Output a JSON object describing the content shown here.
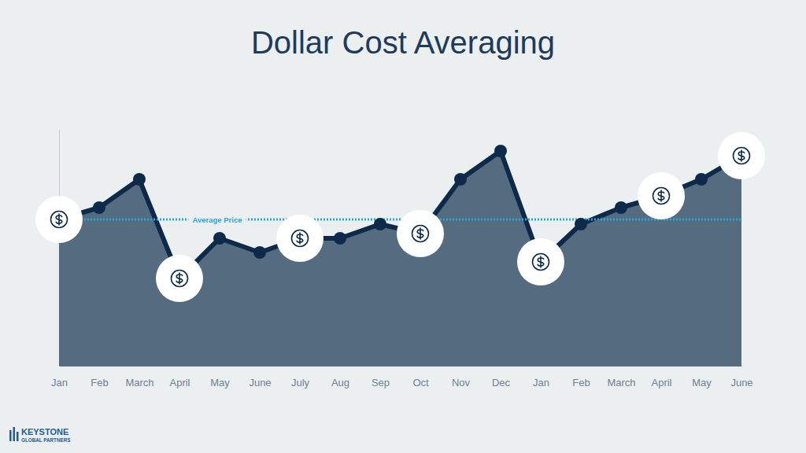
{
  "chart_data": {
    "type": "area",
    "title": "Dollar Cost Averaging",
    "categories": [
      "Jan",
      "Feb",
      "March",
      "April",
      "May",
      "June",
      "July",
      "Aug",
      "Sep",
      "Oct",
      "Nov",
      "Dec",
      "Jan",
      "Feb",
      "March",
      "April",
      "May",
      "June"
    ],
    "values": [
      62,
      67,
      79,
      37,
      54,
      48,
      54,
      54,
      60,
      56,
      79,
      91,
      44,
      60,
      67,
      72,
      79,
      89
    ],
    "color": "#0d2a4a",
    "marker": "circle",
    "ylim": [
      0,
      100
    ],
    "tick_labels": "x",
    "grid": false,
    "average_line": {
      "label": "Average Price",
      "value": 62,
      "color": "#2aa6dd",
      "line_style": "dotted"
    }
  },
  "footer": [
    "KEYSTONE",
    "GLOBAL PARTNERS"
  ]
}
